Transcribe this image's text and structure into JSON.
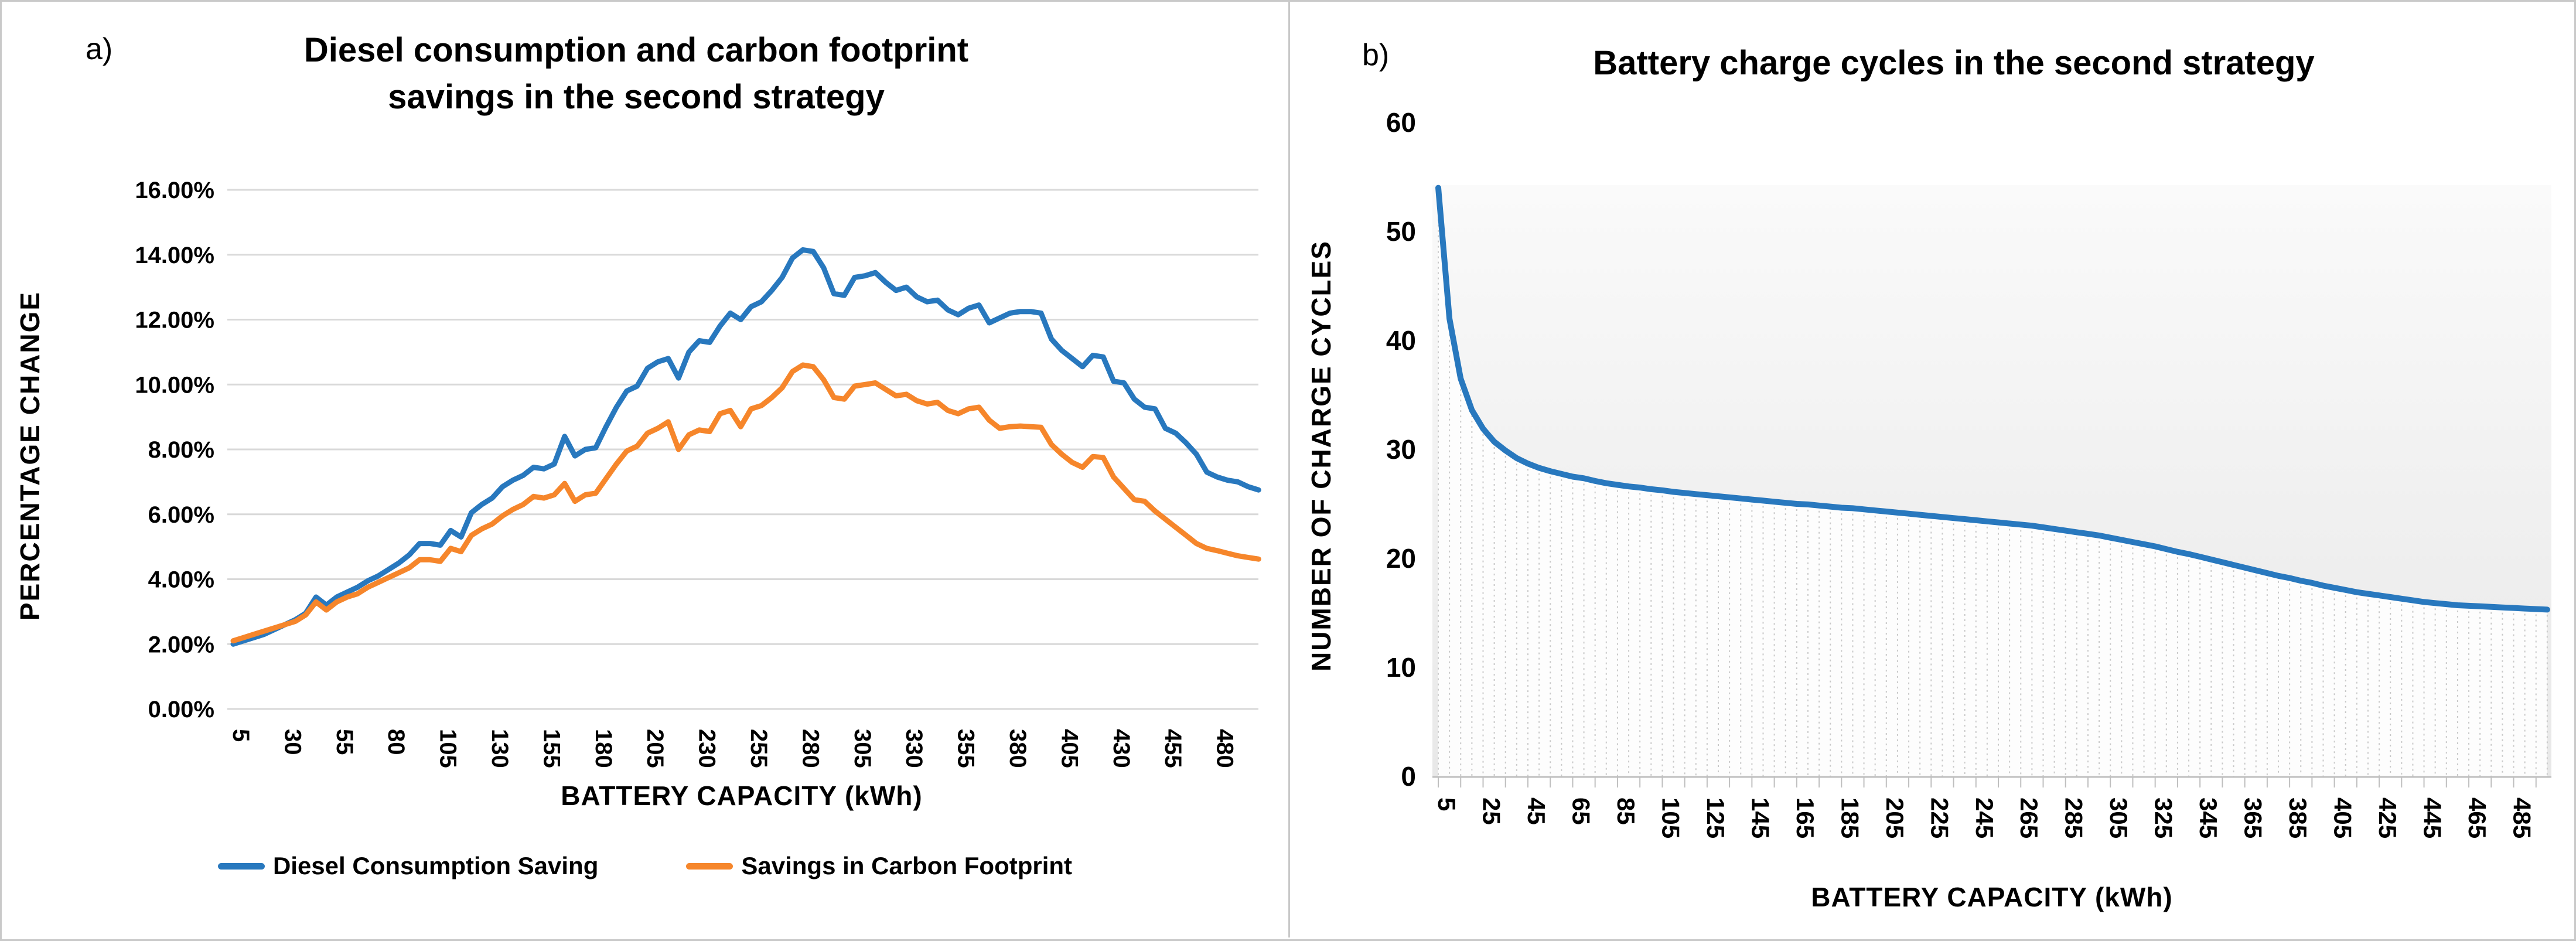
{
  "page": {
    "panel_a_label": "a)",
    "panel_b_label": "b)"
  },
  "colors": {
    "blue_series": "#2878BE",
    "orange_series": "#F6862B",
    "gridline": "#D9D9D9",
    "dropline": "#C9C9C9",
    "axisline": "#BFBFBF",
    "plot_bg_top": "#FAFAFA",
    "plot_bg_bottom": "#E8E8E8",
    "area_fill": "#FDFDFD"
  },
  "chart_data": [
    {
      "type": "line",
      "title_line1": "Diesel consumption and carbon footprint",
      "title_line2": "savings in the second strategy",
      "xlabel": "BATTERY CAPACITY (kWh)",
      "ylabel": "PERCENTAGE CHANGE",
      "x_start": 5,
      "x_step": 5,
      "xlim": [
        5,
        500
      ],
      "ylim": [
        0,
        16
      ],
      "grid": true,
      "legend_position": "bottom",
      "y_tick_labels": [
        "0.00%",
        "2.00%",
        "4.00%",
        "6.00%",
        "8.00%",
        "10.00%",
        "12.00%",
        "14.00%",
        "16.00%"
      ],
      "x_tick_labels": [
        5,
        30,
        55,
        80,
        105,
        130,
        155,
        180,
        205,
        230,
        255,
        280,
        305,
        330,
        355,
        380,
        405,
        430,
        455,
        480
      ],
      "series": [
        {
          "name": "Diesel Consumption Saving",
          "color_key": "blue_series",
          "values": [
            2.0,
            2.1,
            2.2,
            2.3,
            2.45,
            2.6,
            2.75,
            2.95,
            3.45,
            3.2,
            3.45,
            3.6,
            3.75,
            3.95,
            4.1,
            4.3,
            4.5,
            4.75,
            5.1,
            5.1,
            5.05,
            5.5,
            5.3,
            6.05,
            6.3,
            6.5,
            6.85,
            7.05,
            7.2,
            7.45,
            7.4,
            7.55,
            8.4,
            7.8,
            8.0,
            8.05,
            8.7,
            9.3,
            9.8,
            9.95,
            10.5,
            10.7,
            10.8,
            10.2,
            11.0,
            11.35,
            11.3,
            11.8,
            12.2,
            12.0,
            12.4,
            12.55,
            12.9,
            13.3,
            13.9,
            14.15,
            14.1,
            13.6,
            12.8,
            12.75,
            13.3,
            13.35,
            13.45,
            13.15,
            12.9,
            13.0,
            12.7,
            12.55,
            12.6,
            12.3,
            12.15,
            12.35,
            12.45,
            11.9,
            12.05,
            12.2,
            12.25,
            12.25,
            12.2,
            11.4,
            11.05,
            10.8,
            10.55,
            10.9,
            10.85,
            10.1,
            10.05,
            9.55,
            9.3,
            9.25,
            8.65,
            8.5,
            8.2,
            7.85,
            7.3,
            7.15,
            7.05,
            7.0,
            6.85,
            6.75
          ]
        },
        {
          "name": "Savings in Carbon Footprint",
          "color_key": "orange_series",
          "values": [
            2.1,
            2.2,
            2.3,
            2.4,
            2.5,
            2.6,
            2.7,
            2.9,
            3.3,
            3.05,
            3.3,
            3.45,
            3.55,
            3.75,
            3.9,
            4.05,
            4.2,
            4.35,
            4.6,
            4.6,
            4.55,
            4.95,
            4.85,
            5.35,
            5.55,
            5.7,
            5.95,
            6.15,
            6.3,
            6.55,
            6.5,
            6.6,
            6.95,
            6.4,
            6.6,
            6.65,
            7.1,
            7.55,
            7.95,
            8.1,
            8.5,
            8.65,
            8.85,
            8.0,
            8.45,
            8.6,
            8.55,
            9.1,
            9.2,
            8.7,
            9.25,
            9.35,
            9.6,
            9.9,
            10.4,
            10.6,
            10.55,
            10.15,
            9.6,
            9.55,
            9.95,
            10.0,
            10.05,
            9.85,
            9.65,
            9.7,
            9.5,
            9.4,
            9.45,
            9.2,
            9.1,
            9.25,
            9.3,
            8.9,
            8.65,
            8.7,
            8.72,
            8.7,
            8.68,
            8.15,
            7.85,
            7.6,
            7.45,
            7.78,
            7.75,
            7.15,
            6.8,
            6.45,
            6.4,
            6.1,
            5.85,
            5.6,
            5.35,
            5.1,
            4.95,
            4.88,
            4.8,
            4.72,
            4.67,
            4.62
          ]
        }
      ]
    },
    {
      "type": "line",
      "title": "Battery charge cycles in the second strategy",
      "xlabel": "BATTERY CAPACITY (kWh)",
      "ylabel": "NUMBER OF CHARGE CYCLES",
      "x_start": 5,
      "x_step": 5,
      "xlim": [
        5,
        500
      ],
      "ylim": [
        0,
        60
      ],
      "grid": false,
      "drop_lines": true,
      "y_tick_labels": [
        0,
        10,
        20,
        30,
        40,
        50,
        60
      ],
      "x_tick_labels": [
        5,
        25,
        45,
        65,
        85,
        105,
        125,
        145,
        165,
        185,
        205,
        225,
        245,
        265,
        285,
        305,
        325,
        345,
        365,
        385,
        405,
        425,
        445,
        465,
        485
      ],
      "series": [
        {
          "name": "Number of charge cycles",
          "color_key": "blue_series",
          "values": [
            54,
            42,
            36.5,
            33.6,
            31.9,
            30.7,
            29.9,
            29.2,
            28.7,
            28.3,
            28.0,
            27.75,
            27.5,
            27.35,
            27.1,
            26.9,
            26.75,
            26.6,
            26.5,
            26.35,
            26.25,
            26.1,
            26.0,
            25.9,
            25.8,
            25.7,
            25.6,
            25.5,
            25.4,
            25.3,
            25.2,
            25.1,
            25.0,
            24.95,
            24.85,
            24.75,
            24.65,
            24.6,
            24.5,
            24.4,
            24.3,
            24.2,
            24.1,
            24.0,
            23.9,
            23.8,
            23.7,
            23.6,
            23.5,
            23.4,
            23.3,
            23.2,
            23.1,
            23.0,
            22.85,
            22.7,
            22.55,
            22.4,
            22.25,
            22.1,
            21.9,
            21.7,
            21.5,
            21.3,
            21.1,
            20.85,
            20.6,
            20.4,
            20.15,
            19.9,
            19.65,
            19.4,
            19.15,
            18.9,
            18.65,
            18.4,
            18.2,
            17.95,
            17.75,
            17.5,
            17.3,
            17.1,
            16.9,
            16.75,
            16.6,
            16.45,
            16.3,
            16.15,
            16.0,
            15.9,
            15.8,
            15.7,
            15.65,
            15.6,
            15.55,
            15.5,
            15.45,
            15.4,
            15.35,
            15.3
          ]
        }
      ]
    }
  ]
}
